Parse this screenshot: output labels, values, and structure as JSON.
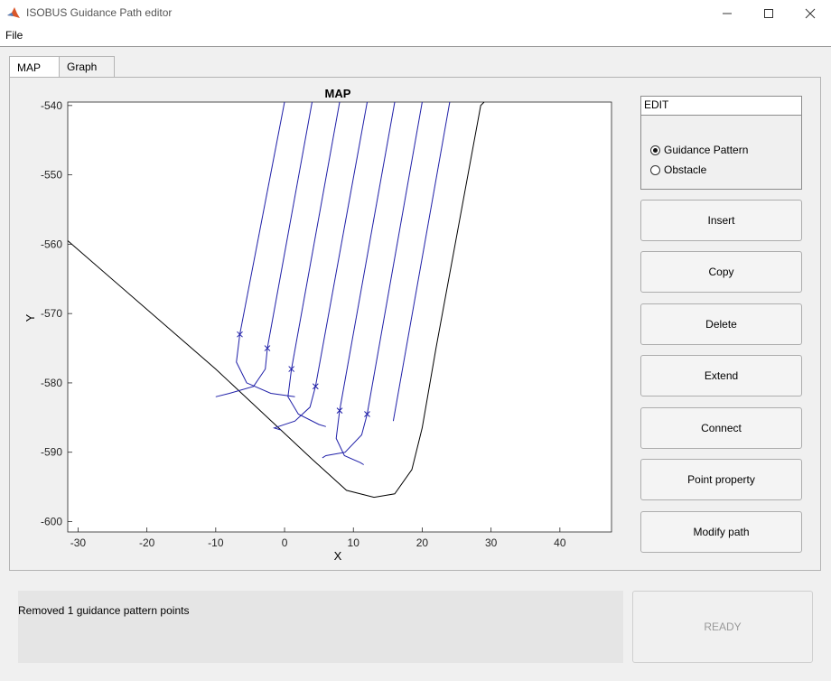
{
  "window": {
    "title": "ISOBUS Guidance Path editor",
    "app_icon": "matlab-icon",
    "minimize_icon": "minimize-icon",
    "maximize_icon": "maximize-icon",
    "close_icon": "close-icon"
  },
  "menu": {
    "file": "File"
  },
  "tabs": [
    {
      "label": "MAP",
      "active": true
    },
    {
      "label": "Graph",
      "active": false
    }
  ],
  "edit_panel": {
    "title": "EDIT",
    "options": [
      {
        "label": "Guidance Pattern",
        "checked": true
      },
      {
        "label": "Obstacle",
        "checked": false
      }
    ]
  },
  "buttons": [
    "Insert",
    "Copy",
    "Delete",
    "Extend",
    "Connect",
    "Point property",
    "Modify path"
  ],
  "status": {
    "message": "Removed 1 guidance pattern points",
    "state": "READY"
  },
  "colors": {
    "path": "#1f1fa8",
    "boundary": "#000000",
    "disabled_text": "#9a9a9a"
  },
  "chart_data": {
    "type": "line",
    "title": "MAP",
    "xlabel": "X",
    "ylabel": "Y",
    "xlim": [
      -31.5,
      47.5
    ],
    "ylim": [
      -601.5,
      -539.5
    ],
    "xticks": [
      -30,
      -20,
      -10,
      0,
      10,
      20,
      30,
      40
    ],
    "yticks": [
      -540,
      -550,
      -560,
      -570,
      -580,
      -590,
      -600
    ],
    "grid": false,
    "boundary": [
      [
        -31.5,
        -559.5
      ],
      [
        -10,
        -578
      ],
      [
        4,
        -591
      ],
      [
        9,
        -595.5
      ],
      [
        13,
        -596.5
      ],
      [
        16,
        -596
      ],
      [
        18.5,
        -592.5
      ],
      [
        20,
        -586.5
      ],
      [
        22,
        -575
      ],
      [
        28.5,
        -540
      ],
      [
        29,
        -539.5
      ]
    ],
    "swaths": [
      [
        [
          -6.5,
          -573
        ],
        [
          0,
          -539.5
        ]
      ],
      [
        [
          -2.5,
          -575
        ],
        [
          4,
          -539.5
        ]
      ],
      [
        [
          1,
          -578
        ],
        [
          8,
          -539.5
        ]
      ],
      [
        [
          4.5,
          -580.5
        ],
        [
          12,
          -539.5
        ]
      ],
      [
        [
          8,
          -584
        ],
        [
          16,
          -539.5
        ]
      ],
      [
        [
          12,
          -584.5
        ],
        [
          20,
          -539.5
        ]
      ],
      [
        [
          15.8,
          -585.5
        ],
        [
          24,
          -539.5
        ]
      ]
    ],
    "turns": [
      {
        "a": [
          [
            -6.5,
            -573
          ],
          [
            -7,
            -577
          ],
          [
            -5.5,
            -580
          ],
          [
            -2,
            -581.5
          ],
          [
            1.5,
            -582
          ]
        ],
        "b": [
          [
            -2.5,
            -575
          ],
          [
            -2.8,
            -578
          ],
          [
            -4.5,
            -580.5
          ],
          [
            -8,
            -581.5
          ],
          [
            -10,
            -582
          ]
        ]
      },
      {
        "a": [
          [
            1,
            -578
          ],
          [
            0.5,
            -582
          ],
          [
            2,
            -584.5
          ],
          [
            5,
            -586
          ],
          [
            6,
            -586.3
          ]
        ],
        "b": [
          [
            4.5,
            -580.5
          ],
          [
            3.7,
            -583.5
          ],
          [
            1.5,
            -585.5
          ],
          [
            -1.5,
            -586.5
          ],
          [
            -0.5,
            -586.8
          ]
        ]
      },
      {
        "a": [
          [
            8,
            -584
          ],
          [
            7.5,
            -588
          ],
          [
            8.7,
            -590.5
          ],
          [
            11,
            -591.5
          ],
          [
            11.5,
            -591.8
          ]
        ],
        "b": [
          [
            12,
            -584.5
          ],
          [
            11.2,
            -587.5
          ],
          [
            8.8,
            -590
          ],
          [
            6,
            -590.5
          ],
          [
            5.5,
            -590.8
          ]
        ]
      }
    ],
    "markers": [
      [
        -6.5,
        -573
      ],
      [
        -2.5,
        -575
      ],
      [
        1,
        -578
      ],
      [
        4.5,
        -580.5
      ],
      [
        8,
        -584
      ],
      [
        12,
        -584.5
      ]
    ]
  }
}
